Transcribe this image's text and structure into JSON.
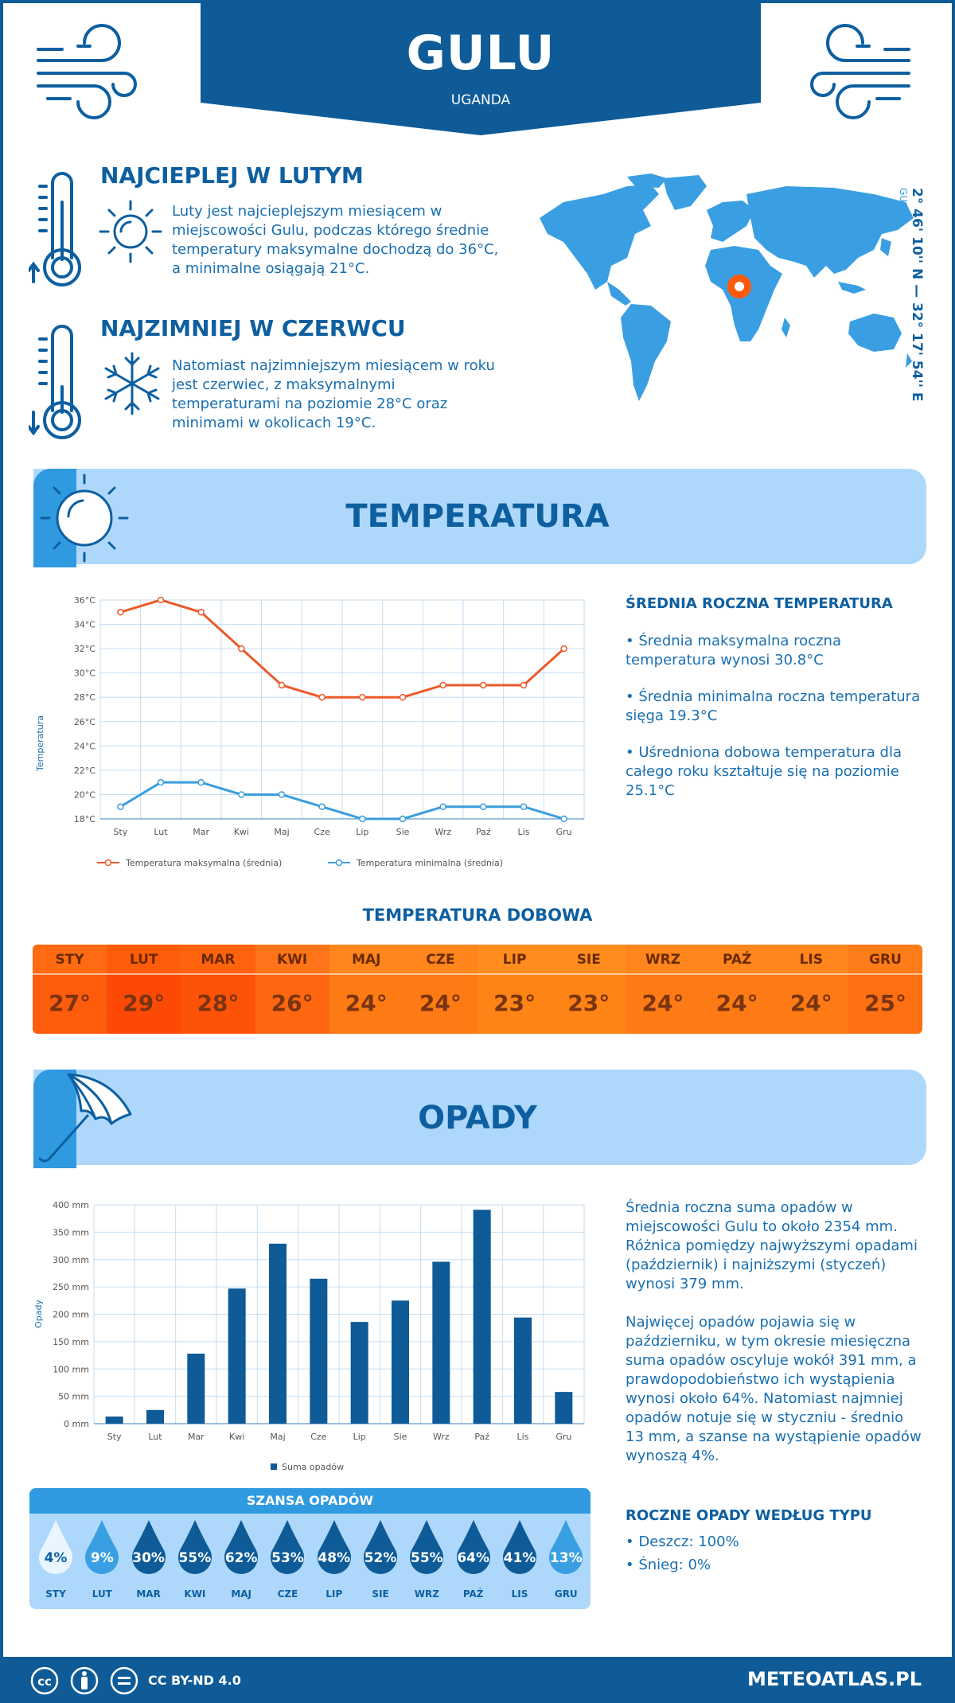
{
  "header": {
    "city": "GULU",
    "country": "UGANDA",
    "coord_label": "GULU",
    "coordinates": "2° 46' 10'' N — 32° 17' 54'' E"
  },
  "warmest": {
    "title": "NAJCIEPLEJ W LUTYM",
    "lines": [
      "Luty jest najcieplejszym miesiącem w",
      "miejscowości Gulu, podczas którego średnie",
      "temperatury maksymalne dochodzą do 36°C,",
      "a minimalne osiągają 21°C."
    ]
  },
  "coldest": {
    "title": "NAJZIMNIEJ W CZERWCU",
    "lines": [
      "Natomiast najzimniejszym miesiącem w roku",
      "jest czerwiec, z maksymalnymi",
      "temperaturami na poziomie 28°C oraz",
      "minimami w okolicach 19°C."
    ]
  },
  "temperature": {
    "section_title": "TEMPERATURA",
    "side_title": "ŚREDNIA ROCZNA TEMPERATURA",
    "bullets": [
      [
        "• Średnia maksymalna roczna",
        "temperatura wynosi 30.8°C"
      ],
      [
        "• Średnia minimalna roczna temperatura",
        "sięga 19.3°C"
      ],
      [
        "• Uśredniona dobowa temperatura dla",
        "całego roku kształtuje się na poziomie",
        "25.1°C"
      ]
    ],
    "daily_title": "TEMPERATURA DOBOWA",
    "daily": [
      {
        "m": "STY",
        "v": "27°",
        "c": "#fd5c0c",
        "cm": "#ff6a12"
      },
      {
        "m": "LUT",
        "v": "29°",
        "c": "#fc4a06",
        "cm": "#ff5c0a"
      },
      {
        "m": "MAR",
        "v": "28°",
        "c": "#fd5308",
        "cm": "#ff630e"
      },
      {
        "m": "KWI",
        "v": "26°",
        "c": "#fe6610",
        "cm": "#ff7418"
      },
      {
        "m": "MAJ",
        "v": "24°",
        "c": "#fe7a14",
        "cm": "#ff851c"
      },
      {
        "m": "CZE",
        "v": "24°",
        "c": "#fe7a14",
        "cm": "#ff851c"
      },
      {
        "m": "LIP",
        "v": "23°",
        "c": "#fe8416",
        "cm": "#ff8d1e"
      },
      {
        "m": "SIE",
        "v": "23°",
        "c": "#fe8416",
        "cm": "#ff8d1e"
      },
      {
        "m": "WRZ",
        "v": "24°",
        "c": "#fe7a14",
        "cm": "#ff851c"
      },
      {
        "m": "PAŹ",
        "v": "24°",
        "c": "#fe7a14",
        "cm": "#ff851c"
      },
      {
        "m": "LIS",
        "v": "24°",
        "c": "#fe7a14",
        "cm": "#ff851c"
      },
      {
        "m": "GRU",
        "v": "25°",
        "c": "#fe7012",
        "cm": "#ff7c1a"
      }
    ]
  },
  "precip": {
    "section_title": "OPADY",
    "para1": [
      "Średnia roczna suma opadów w",
      "miejscowości Gulu to około 2354 mm.",
      "Różnica pomiędzy najwyższymi opadami",
      "(październik) i najniższymi (styczeń)",
      "wynosi 379 mm."
    ],
    "para2": [
      "Najwięcej opadów pojawia się w",
      "październiku, w tym okresie miesięczna",
      "suma opadów oscyluje wokół 391 mm, a",
      "prawdopodobieństwo ich wystąpienia",
      "wynosi około 64%. Natomiast najmniej",
      "opadów notuje się w styczniu - średnio",
      "13 mm, a szanse na wystąpienie opadów",
      "wynoszą 4%."
    ],
    "type_title": "ROCZNE OPADY WEDŁUG TYPU",
    "types": [
      "• Deszcz: 100%",
      "• Śnieg: 0%"
    ],
    "chance_title": "SZANSA OPADÓW",
    "chance": [
      {
        "m": "STY",
        "p": "4%",
        "fill": "#eaf6ff",
        "txt": "#0d5fa0"
      },
      {
        "m": "LUT",
        "p": "9%",
        "fill": "#3a9fe2",
        "txt": "#ffffff"
      },
      {
        "m": "MAR",
        "p": "30%",
        "fill": "#0e5b98",
        "txt": "#ffffff"
      },
      {
        "m": "KWI",
        "p": "55%",
        "fill": "#0e5b98",
        "txt": "#ffffff"
      },
      {
        "m": "MAJ",
        "p": "62%",
        "fill": "#0e5b98",
        "txt": "#ffffff"
      },
      {
        "m": "CZE",
        "p": "53%",
        "fill": "#0e5b98",
        "txt": "#ffffff"
      },
      {
        "m": "LIP",
        "p": "48%",
        "fill": "#0e5b98",
        "txt": "#ffffff"
      },
      {
        "m": "SIE",
        "p": "52%",
        "fill": "#0e5b98",
        "txt": "#ffffff"
      },
      {
        "m": "WRZ",
        "p": "55%",
        "fill": "#0e5b98",
        "txt": "#ffffff"
      },
      {
        "m": "PAŹ",
        "p": "64%",
        "fill": "#0e5b98",
        "txt": "#ffffff"
      },
      {
        "m": "LIS",
        "p": "41%",
        "fill": "#0e5b98",
        "txt": "#ffffff"
      },
      {
        "m": "GRU",
        "p": "13%",
        "fill": "#3a9fe2",
        "txt": "#ffffff"
      }
    ]
  },
  "chart_data": [
    {
      "type": "line",
      "categories": [
        "Sty",
        "Lut",
        "Mar",
        "Kwi",
        "Maj",
        "Cze",
        "Lip",
        "Sie",
        "Wrz",
        "Paź",
        "Lis",
        "Gru"
      ],
      "ylabel": "Temperatura",
      "ylim": [
        18,
        36
      ],
      "yticks": [
        "18°C",
        "20°C",
        "22°C",
        "24°C",
        "26°C",
        "28°C",
        "30°C",
        "32°C",
        "34°C",
        "36°C"
      ],
      "series": [
        {
          "name": "Temperatura maksymalna (średnia)",
          "color": "#ec5a2a",
          "values": [
            35,
            36,
            35,
            32,
            29,
            28,
            28,
            28,
            29,
            29,
            29,
            32
          ]
        },
        {
          "name": "Temperatura minimalna (średnia)",
          "color": "#3b9ddd",
          "values": [
            19,
            21,
            21,
            20,
            20,
            19,
            18,
            18,
            19,
            19,
            19,
            18
          ]
        }
      ],
      "grid": true,
      "legend": "bottom"
    },
    {
      "type": "bar",
      "categories": [
        "Sty",
        "Lut",
        "Mar",
        "Kwi",
        "Maj",
        "Cze",
        "Lip",
        "Sie",
        "Wrz",
        "Paź",
        "Lis",
        "Gru"
      ],
      "ylabel": "Opady",
      "ylim": [
        0,
        400
      ],
      "yticks": [
        "0 mm",
        "50 mm",
        "100 mm",
        "150 mm",
        "200 mm",
        "250 mm",
        "300 mm",
        "350 mm",
        "400 mm"
      ],
      "series": [
        {
          "name": "Suma opadów",
          "color": "#0e5b98",
          "values": [
            13,
            25,
            128,
            247,
            329,
            265,
            186,
            225,
            296,
            391,
            194,
            58
          ]
        }
      ],
      "grid": true,
      "legend": "bottom"
    }
  ],
  "footer": {
    "license": "CC BY-ND 4.0",
    "site": "METEOATLAS.PL"
  }
}
